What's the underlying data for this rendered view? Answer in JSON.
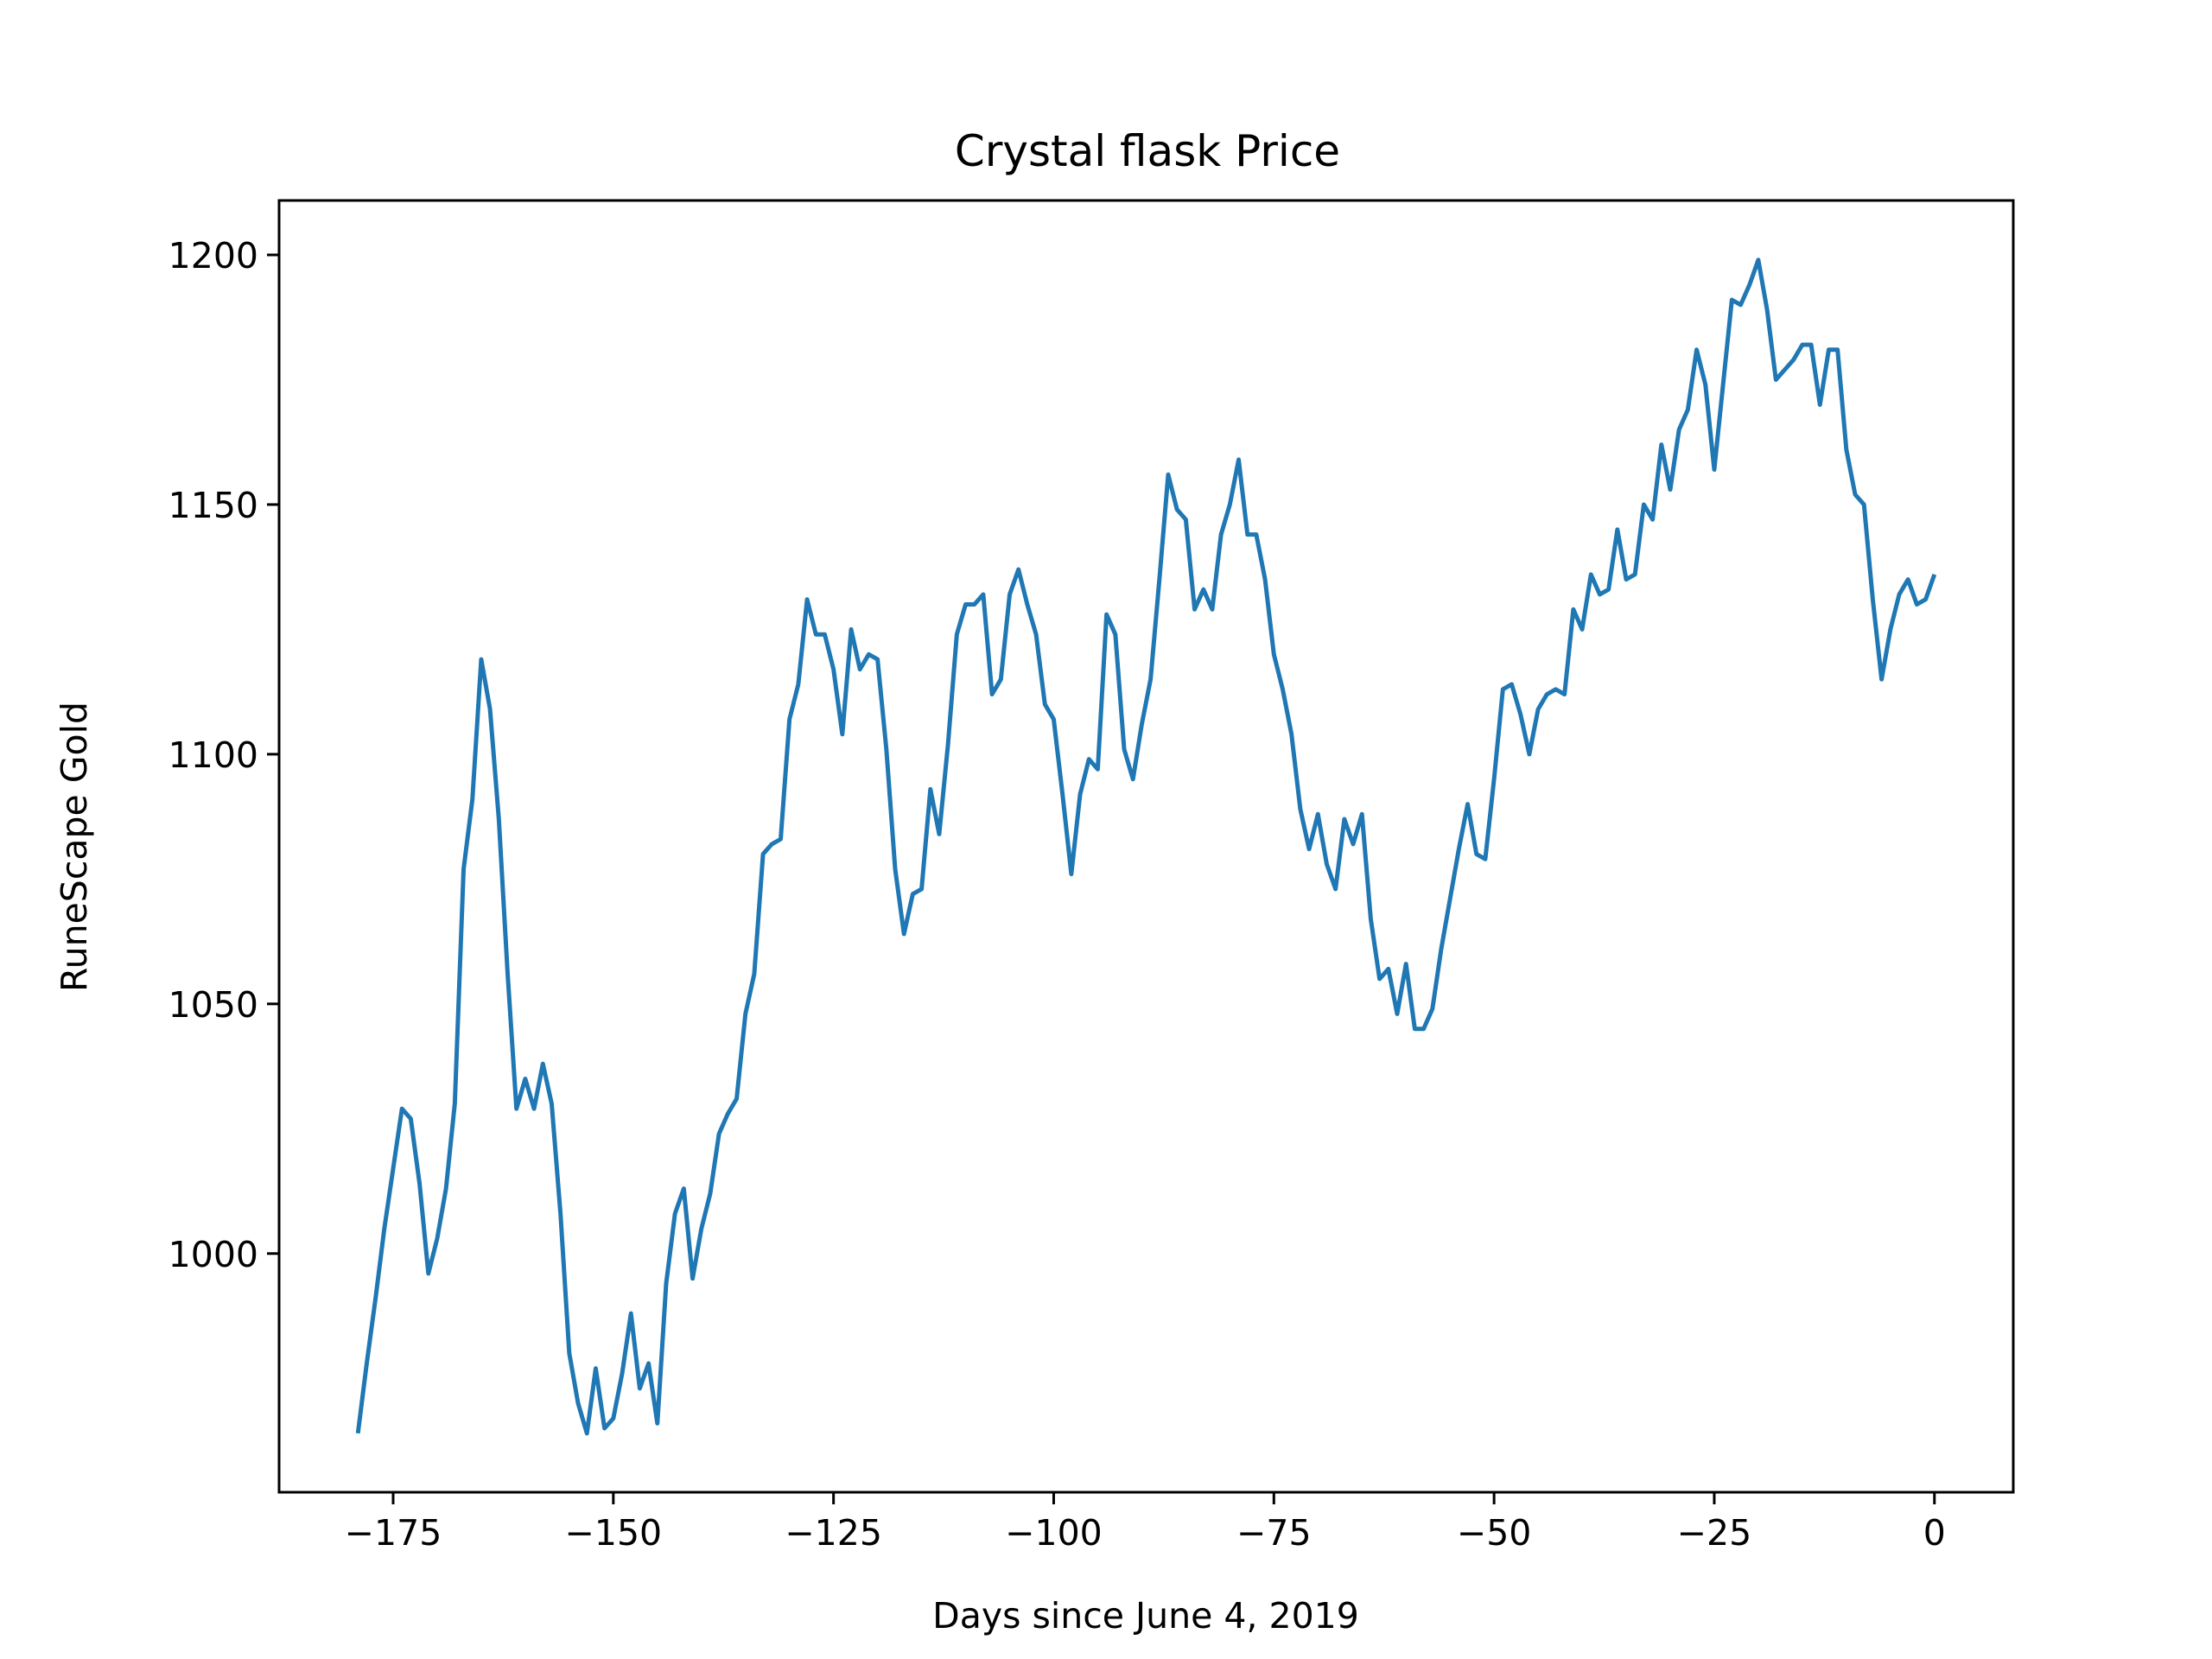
{
  "chart_data": {
    "type": "line",
    "title": "Crystal flask Price",
    "xlabel": "Days since June 4, 2019",
    "ylabel": "RuneScape Gold",
    "xlim": [
      -187.95,
      8.95
    ],
    "ylim": [
      952.2,
      1210.9
    ],
    "xticks": [
      -175,
      -150,
      -125,
      -100,
      -75,
      -50,
      -25,
      0
    ],
    "xtick_labels": [
      "−175",
      "−150",
      "−125",
      "−100",
      "−75",
      "−50",
      "−25",
      "0"
    ],
    "yticks": [
      1000,
      1050,
      1100,
      1150,
      1200
    ],
    "ytick_labels": [
      "1000",
      "1050",
      "1100",
      "1150",
      "1200"
    ],
    "grid": false,
    "series": [
      {
        "color": "#1f77b4",
        "x": [
          -179,
          -178,
          -177,
          -176,
          -175,
          -174,
          -173,
          -172,
          -171,
          -170,
          -169,
          -168,
          -167,
          -166,
          -165,
          -164,
          -163,
          -162,
          -161,
          -160,
          -159,
          -158,
          -157,
          -156,
          -155,
          -154,
          -153,
          -152,
          -151,
          -150,
          -149,
          -148,
          -147,
          -146,
          -145,
          -144,
          -143,
          -142,
          -141,
          -140,
          -139,
          -138,
          -137,
          -136,
          -135,
          -134,
          -133,
          -132,
          -131,
          -130,
          -129,
          -128,
          -127,
          -126,
          -125,
          -124,
          -123,
          -122,
          -121,
          -120,
          -119,
          -118,
          -117,
          -116,
          -115,
          -114,
          -113,
          -112,
          -111,
          -110,
          -109,
          -108,
          -107,
          -106,
          -105,
          -104,
          -103,
          -102,
          -101,
          -100,
          -99,
          -98,
          -97,
          -96,
          -95,
          -94,
          -93,
          -92,
          -91,
          -90,
          -89,
          -88,
          -87,
          -86,
          -85,
          -84,
          -83,
          -82,
          -81,
          -80,
          -79,
          -78,
          -77,
          -76,
          -75,
          -74,
          -73,
          -72,
          -71,
          -70,
          -69,
          -68,
          -67,
          -66,
          -65,
          -64,
          -63,
          -62,
          -61,
          -60,
          -59,
          -58,
          -57,
          -56,
          -55,
          -54,
          -53,
          -52,
          -51,
          -50,
          -49,
          -48,
          -47,
          -46,
          -45,
          -44,
          -43,
          -42,
          -41,
          -40,
          -39,
          -38,
          -37,
          -36,
          -35,
          -34,
          -33,
          -32,
          -31,
          -30,
          -29,
          -28,
          -27,
          -26,
          -25,
          -24,
          -23,
          -22,
          -21,
          -20,
          -19,
          -18,
          -17,
          -16,
          -15,
          -14,
          -13,
          -12,
          -11,
          -10,
          -9,
          -8,
          -7,
          -6,
          -5,
          -4,
          -3,
          -2,
          -1,
          0
        ],
        "y": [
          964,
          978,
          991,
          1005,
          1017,
          1029,
          1027,
          1014,
          996,
          1003,
          1013,
          1030,
          1077,
          1091,
          1119,
          1109,
          1087,
          1056,
          1029,
          1035,
          1029,
          1038,
          1030,
          1008,
          980,
          970,
          964,
          977,
          965,
          967,
          976,
          988,
          973,
          978,
          966,
          994,
          1008,
          1013,
          995,
          1005,
          1012,
          1024,
          1028,
          1031,
          1048,
          1056,
          1080,
          1082,
          1083,
          1107,
          1114,
          1131,
          1124,
          1124,
          1117,
          1104,
          1125,
          1117,
          1120,
          1119,
          1101,
          1077,
          1064,
          1072,
          1073,
          1093,
          1084,
          1102,
          1124,
          1130,
          1130,
          1132,
          1112,
          1115,
          1132,
          1137,
          1130,
          1124,
          1110,
          1107,
          1092,
          1076,
          1092,
          1099,
          1097,
          1128,
          1124,
          1101,
          1095,
          1106,
          1115,
          1135,
          1156,
          1149,
          1147,
          1129,
          1133,
          1129,
          1144,
          1150,
          1159,
          1144,
          1144,
          1135,
          1120,
          1113,
          1104,
          1089,
          1081,
          1088,
          1078,
          1073,
          1087,
          1082,
          1088,
          1067,
          1055,
          1057,
          1048,
          1058,
          1045,
          1045,
          1049,
          1061,
          1071,
          1081,
          1090,
          1080,
          1079,
          1095,
          1113,
          1114,
          1108,
          1100,
          1109,
          1112,
          1113,
          1112,
          1129,
          1125,
          1136,
          1132,
          1133,
          1145,
          1135,
          1136,
          1150,
          1147,
          1162,
          1153,
          1165,
          1169,
          1181,
          1174,
          1157,
          1174,
          1191,
          1190,
          1194,
          1199,
          1189,
          1175,
          1177,
          1179,
          1182,
          1182,
          1170,
          1181,
          1181,
          1161,
          1152,
          1150,
          1131,
          1115,
          1125,
          1132,
          1135,
          1130,
          1131,
          1136
        ]
      }
    ]
  }
}
